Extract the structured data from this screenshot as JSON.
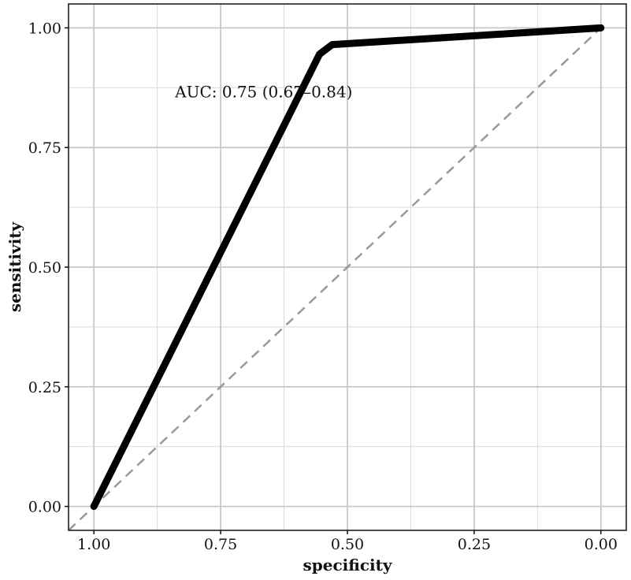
{
  "chart_data": {
    "type": "line",
    "xlabel": "specificity",
    "ylabel": "sensitivity",
    "x_reversed": true,
    "xlim": [
      1.05,
      -0.05
    ],
    "ylim": [
      -0.05,
      1.05
    ],
    "grid": true,
    "x_ticks": [
      {
        "value": 1.0,
        "label": "1.00"
      },
      {
        "value": 0.75,
        "label": "0.75"
      },
      {
        "value": 0.5,
        "label": "0.50"
      },
      {
        "value": 0.25,
        "label": "0.25"
      },
      {
        "value": 0.0,
        "label": "0.00"
      }
    ],
    "y_ticks": [
      {
        "value": 0.0,
        "label": "0.00"
      },
      {
        "value": 0.25,
        "label": "0.25"
      },
      {
        "value": 0.5,
        "label": "0.50"
      },
      {
        "value": 0.75,
        "label": "0.75"
      },
      {
        "value": 1.0,
        "label": "1.00"
      }
    ],
    "series": [
      {
        "style": "roc-curve",
        "color": "#000000",
        "points": [
          {
            "x": 1.0,
            "y": 0.0
          },
          {
            "x": 0.555,
            "y": 0.945
          },
          {
            "x": 0.53,
            "y": 0.965
          },
          {
            "x": 0.0,
            "y": 1.0
          }
        ]
      },
      {
        "style": "reference-diagonal",
        "color": "#999999",
        "points": [
          {
            "x": 1.05,
            "y": -0.05
          },
          {
            "x": 0.0,
            "y": 1.0
          }
        ]
      }
    ],
    "annotation": {
      "text": "AUC: 0.75 (0.67–0.84)",
      "x": 0.84,
      "y": 0.855
    }
  }
}
